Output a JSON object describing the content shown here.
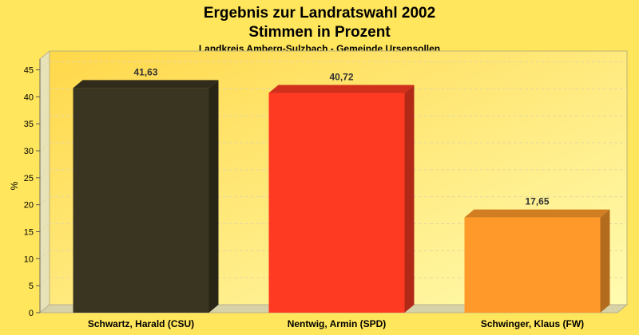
{
  "chart_data": {
    "type": "bar",
    "title": "Ergebnis zur Landratswahl 2002",
    "subtitle": "Stimmen in Prozent",
    "caption": "Landkreis Amberg-Sulzbach - Gemeinde Ursensollen",
    "ylabel": "%",
    "xlabel": "",
    "ylim": [
      0,
      47
    ],
    "yticks": [
      0,
      5,
      10,
      15,
      20,
      25,
      30,
      35,
      40,
      45
    ],
    "grid": true,
    "categories": [
      "Schwartz, Harald (CSU)",
      "Nentwig, Armin (SPD)",
      "Schwinger, Klaus (FW)"
    ],
    "values": [
      41.63,
      40.72,
      17.65
    ],
    "value_labels": [
      "41,63",
      "40,72",
      "17,65"
    ],
    "colors": [
      "#3a3520",
      "#ff3a22",
      "#ff9a2a"
    ]
  }
}
